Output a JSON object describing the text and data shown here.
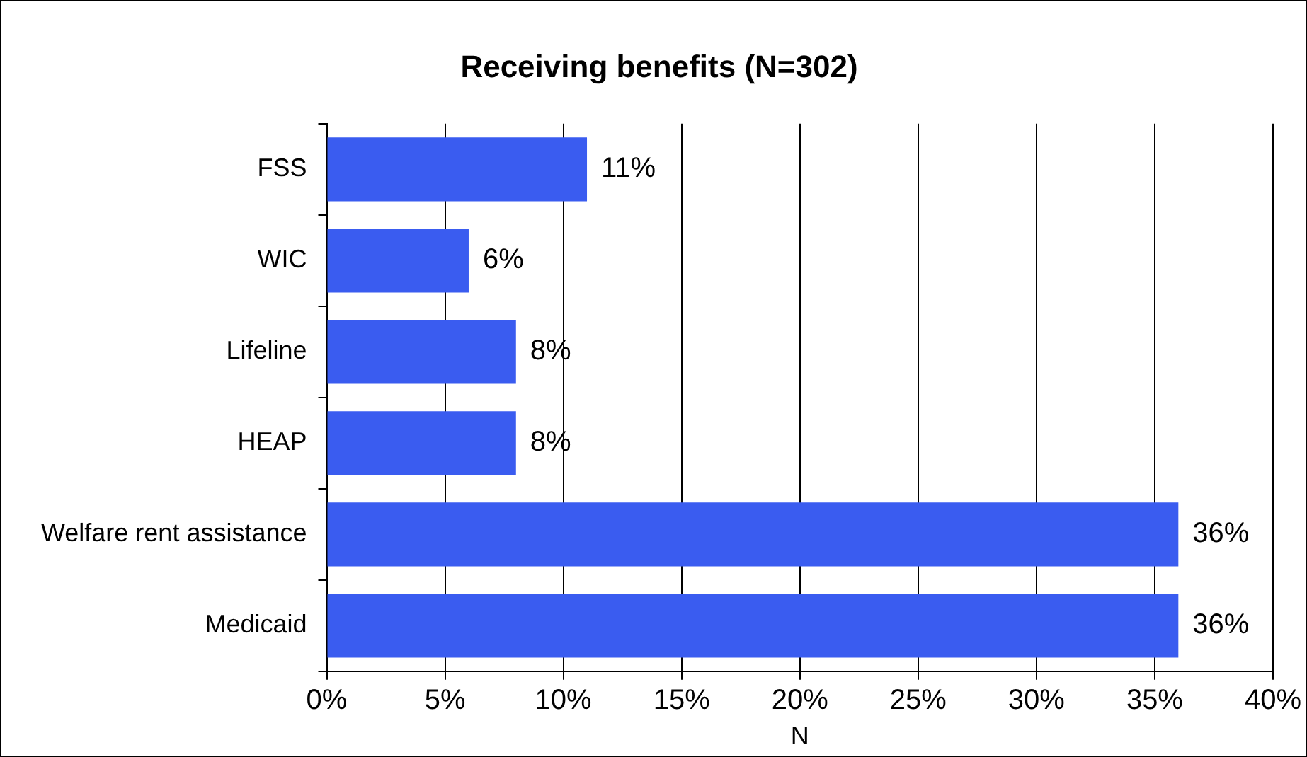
{
  "chart_data": {
    "type": "bar",
    "orientation": "horizontal",
    "title": "Receiving benefits (N=302)",
    "xlabel": "N",
    "categories": [
      "FSS",
      "WIC",
      "Lifeline",
      "HEAP",
      "Welfare rent assistance",
      "Medicaid"
    ],
    "values": [
      11,
      6,
      8,
      8,
      36,
      36
    ],
    "value_labels": [
      "11%",
      "6%",
      "8%",
      "8%",
      "36%",
      "36%"
    ],
    "color": "#3a5cf0",
    "xlim": [
      0,
      40
    ],
    "xticks": [
      {
        "value": 0,
        "label": "0%"
      },
      {
        "value": 5,
        "label": "5%"
      },
      {
        "value": 10,
        "label": "10%"
      },
      {
        "value": 15,
        "label": "15%"
      },
      {
        "value": 20,
        "label": "20%"
      },
      {
        "value": 25,
        "label": "25%"
      },
      {
        "value": 30,
        "label": "30%"
      },
      {
        "value": 35,
        "label": "35%"
      },
      {
        "value": 40,
        "label": "40%"
      }
    ],
    "grid": "x",
    "legend": false
  }
}
